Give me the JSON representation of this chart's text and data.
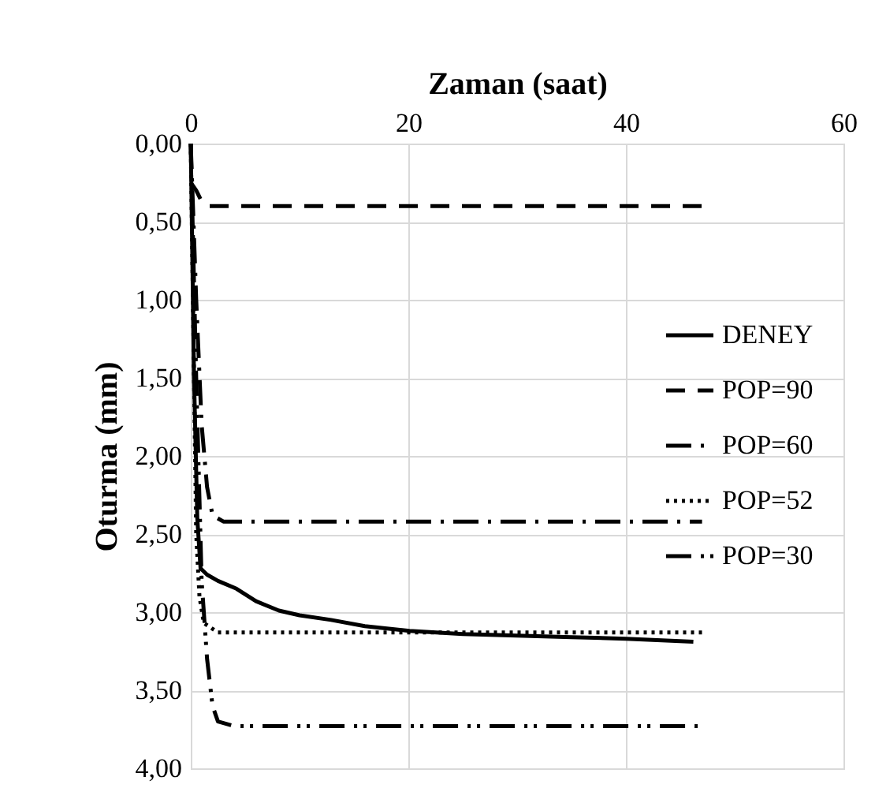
{
  "chart_data": {
    "type": "line",
    "xlabel": "Zaman (saat)",
    "ylabel": "Oturma (mm)",
    "xlim": [
      0,
      60
    ],
    "xticks": [
      0,
      20,
      40,
      60
    ],
    "ylim": [
      4,
      0
    ],
    "yticks": [
      {
        "value": 0,
        "label": "0,00"
      },
      {
        "value": 0.5,
        "label": "0,50"
      },
      {
        "value": 1,
        "label": "1,00"
      },
      {
        "value": 1.5,
        "label": "1,50"
      },
      {
        "value": 2,
        "label": "2,00"
      },
      {
        "value": 2.5,
        "label": "2,50"
      },
      {
        "value": 3,
        "label": "3,00"
      },
      {
        "value": 3.5,
        "label": "3,50"
      },
      {
        "value": 4,
        "label": "4,00"
      }
    ],
    "grid": true,
    "legend": "right",
    "marker": "none",
    "series": [
      {
        "name": "DENEY",
        "color": "#000000",
        "line_style": "solid",
        "x": [
          0,
          0.3,
          0.6,
          0.9,
          1.5,
          2.5,
          4.2,
          6,
          8.1,
          10,
          12.9,
          16,
          20.1,
          25,
          30,
          35,
          40,
          46.2
        ],
        "values": [
          0,
          1.5,
          2.4,
          2.72,
          2.76,
          2.8,
          2.85,
          2.93,
          2.99,
          3.02,
          3.05,
          3.09,
          3.12,
          3.14,
          3.15,
          3.16,
          3.17,
          3.19
        ]
      },
      {
        "name": "POP=90",
        "color": "#000000",
        "line_style": "dashed",
        "x": [
          0,
          0.5,
          1,
          1.5,
          47
        ],
        "values": [
          0.25,
          0.3,
          0.37,
          0.4,
          0.4
        ]
      },
      {
        "name": "POP=60",
        "color": "#000000",
        "line_style": "dashdot",
        "x": [
          0,
          0.5,
          1,
          1.5,
          2,
          3,
          47
        ],
        "values": [
          0,
          1,
          1.8,
          2.2,
          2.38,
          2.42,
          2.42
        ]
      },
      {
        "name": "POP=52",
        "color": "#000000",
        "line_style": "dotted",
        "x": [
          0,
          0.5,
          0.8,
          1.2,
          2.5,
          47
        ],
        "values": [
          0,
          2.5,
          2.9,
          3.07,
          3.13,
          3.13
        ]
      },
      {
        "name": "POP=30",
        "color": "#000000",
        "line_style": "dashdotdot",
        "x": [
          0,
          0.5,
          1,
          1.5,
          2,
          2.5,
          4,
          47
        ],
        "values": [
          0,
          1.5,
          2.8,
          3.3,
          3.6,
          3.7,
          3.73,
          3.73
        ]
      }
    ]
  }
}
